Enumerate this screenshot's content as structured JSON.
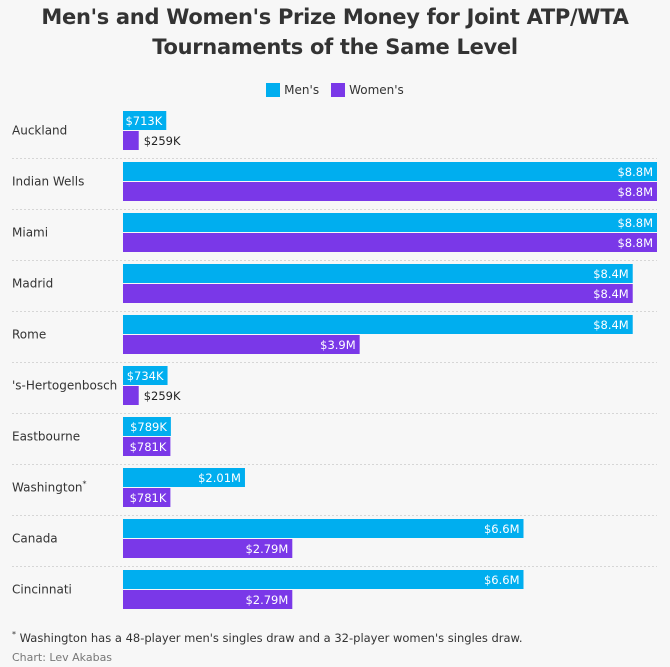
{
  "title_line1": "Men's and Women's Prize Money for Joint ATP/WTA",
  "title_line2": "Tournaments of the Same Level",
  "legend": {
    "mens": "Men's",
    "womens": "Women's"
  },
  "colors": {
    "mens": "#00aeef",
    "womens": "#7a38e8",
    "divider": "#d6d6d6"
  },
  "footnote": {
    "marker": "*",
    "text": "Washington has a 48-player men's singles draw and a 32-player women's singles draw."
  },
  "credit": "Chart: Lev Akabas",
  "chart_data": {
    "type": "bar",
    "orientation": "horizontal",
    "grid": false,
    "legend_position": "top-center",
    "categories": [
      "Auckland",
      "Indian Wells",
      "Miami",
      "Madrid",
      "Rome",
      "'s-Hertogenbosch",
      "Eastbourne",
      "Washington",
      "Canada",
      "Cincinnati"
    ],
    "category_markers": [
      "",
      "",
      "",
      "",
      "",
      "",
      "",
      "*",
      "",
      ""
    ],
    "series": [
      {
        "name": "Men's",
        "values": [
          0.713,
          8.8,
          8.8,
          8.4,
          8.4,
          0.734,
          0.789,
          2.01,
          6.6,
          6.6
        ],
        "labels": [
          "$713K",
          "$8.8M",
          "$8.8M",
          "$8.4M",
          "$8.4M",
          "$734K",
          "$789K",
          "$2.01M",
          "$6.6M",
          "$6.6M"
        ]
      },
      {
        "name": "Women's",
        "values": [
          0.259,
          8.8,
          8.8,
          8.4,
          3.9,
          0.259,
          0.781,
          0.781,
          2.79,
          2.79
        ],
        "labels": [
          "$259K",
          "$8.8M",
          "$8.8M",
          "$8.4M",
          "$3.9M",
          "$259K",
          "$781K",
          "$781K",
          "$2.79M",
          "$2.79M"
        ]
      }
    ],
    "unit": "millions USD",
    "xlim": [
      0,
      8.8
    ]
  }
}
